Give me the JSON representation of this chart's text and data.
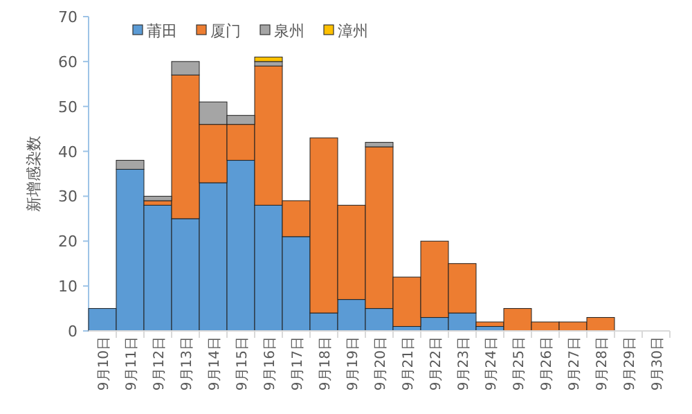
{
  "chart_data": {
    "type": "bar",
    "stacked": true,
    "ylabel": "新增感染数",
    "categories": [
      "9月10日",
      "9月11日",
      "9月12日",
      "9月13日",
      "9月14日",
      "9月15日",
      "9月16日",
      "9月17日",
      "9月18日",
      "9月19日",
      "9月20日",
      "9月21日",
      "9月22日",
      "9月23日",
      "9月24日",
      "9月25日",
      "9月26日",
      "9月27日",
      "9月28日",
      "9月29日",
      "9月30日"
    ],
    "series": [
      {
        "name": "莆田",
        "color": "#5b9bd5",
        "values": [
          5,
          36,
          28,
          25,
          33,
          38,
          28,
          21,
          4,
          7,
          5,
          1,
          3,
          4,
          1,
          0,
          0,
          0,
          0,
          0,
          0
        ]
      },
      {
        "name": "厦门",
        "color": "#ed7d31",
        "values": [
          0,
          0,
          1,
          32,
          13,
          8,
          31,
          8,
          39,
          21,
          36,
          11,
          17,
          11,
          1,
          5,
          2,
          2,
          3,
          0,
          0
        ]
      },
      {
        "name": "泉州",
        "color": "#a5a5a5",
        "values": [
          0,
          2,
          1,
          3,
          5,
          2,
          1,
          0,
          0,
          0,
          1,
          0,
          0,
          0,
          0,
          0,
          0,
          0,
          0,
          0,
          0
        ]
      },
      {
        "name": "漳州",
        "color": "#ffc000",
        "values": [
          0,
          0,
          0,
          0,
          0,
          0,
          1,
          0,
          0,
          0,
          0,
          0,
          0,
          0,
          0,
          0,
          0,
          0,
          0,
          0,
          0
        ]
      }
    ],
    "ylim": [
      0,
      70
    ],
    "yticks": [
      0,
      10,
      20,
      30,
      40,
      50,
      60,
      70
    ],
    "grid": false,
    "legend": "top"
  }
}
